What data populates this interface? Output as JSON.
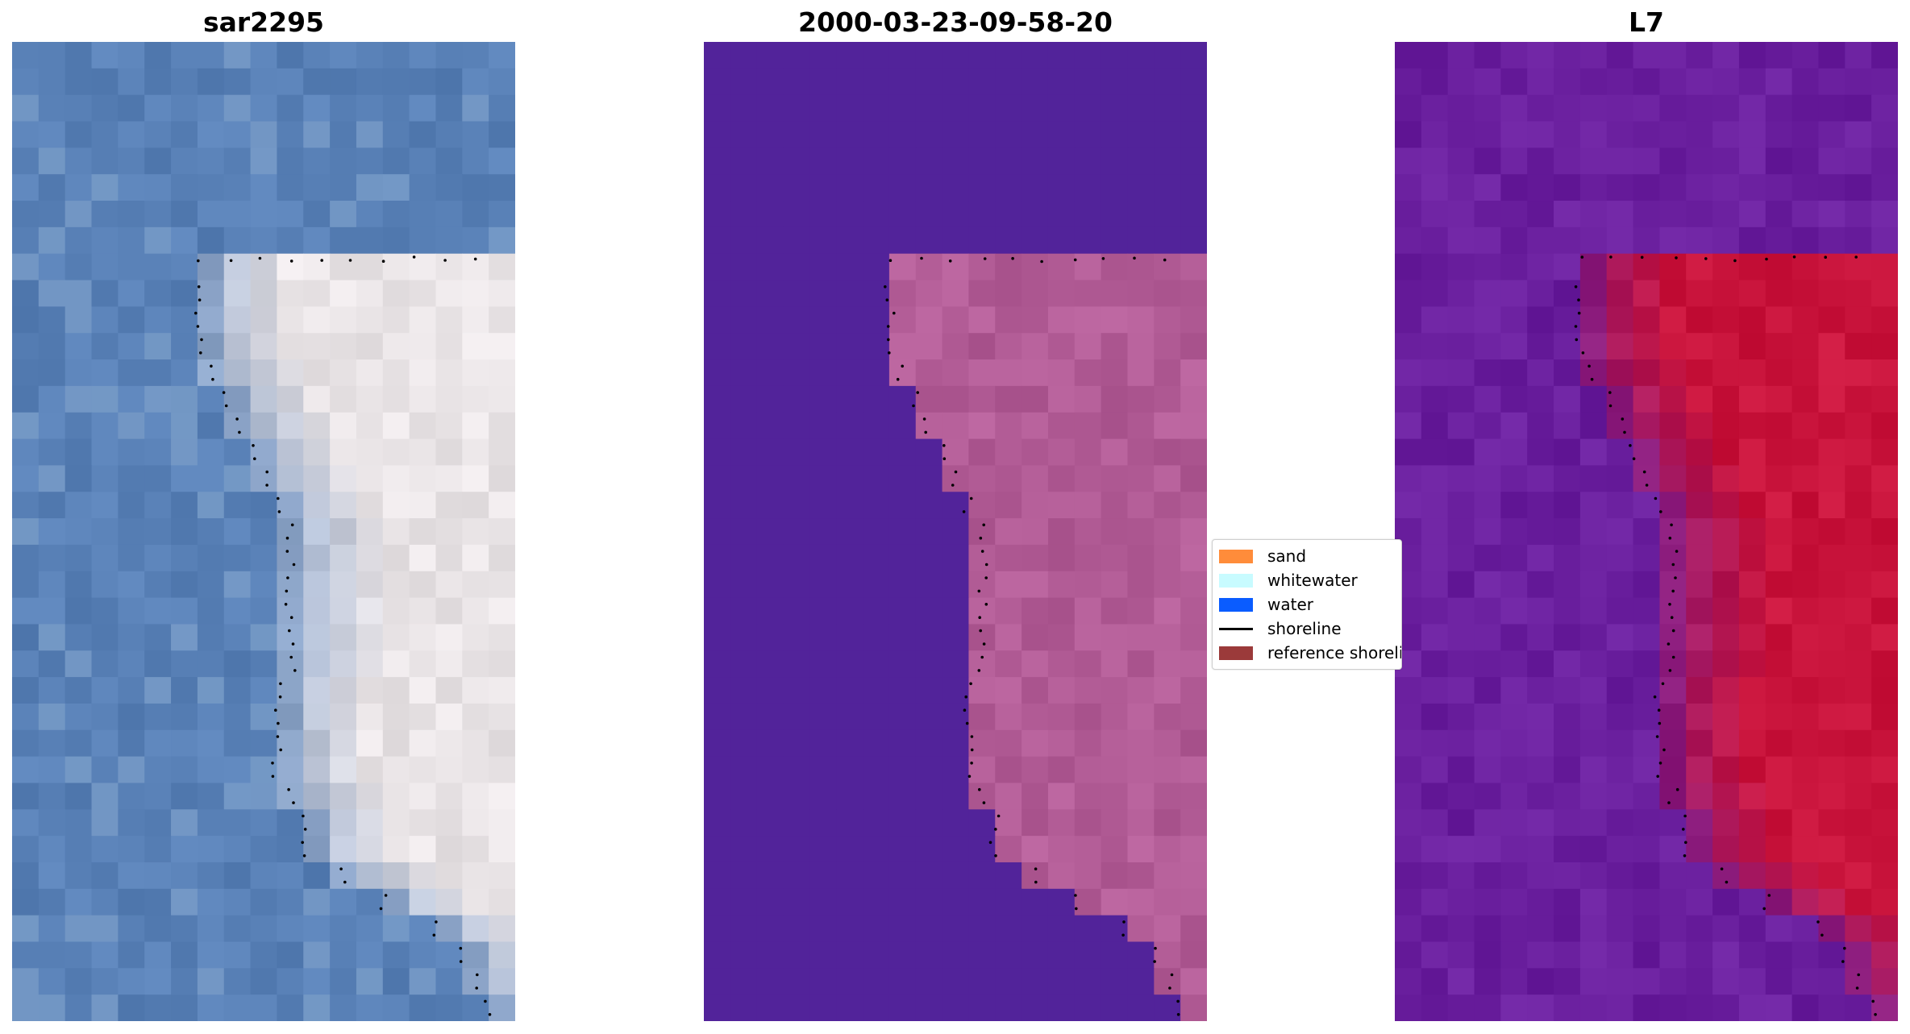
{
  "panels": [
    {
      "title": "sar2295",
      "image": "RGB satellite image of coastline"
    },
    {
      "title": "2000-03-23-09-58-20",
      "image": "classified image of coastline"
    },
    {
      "title": "L7",
      "image": "water index image of coastline"
    }
  ],
  "legend": {
    "items": [
      {
        "label": "sand",
        "color": "#ff8c3a",
        "kind": "swatch"
      },
      {
        "label": "whitewater",
        "color": "#c8fbff",
        "kind": "swatch"
      },
      {
        "label": "water",
        "color": "#0a5cff",
        "kind": "swatch"
      },
      {
        "label": "shoreline",
        "color": "#000000",
        "kind": "line"
      },
      {
        "label": "reference shoreline",
        "color": "#9b3a3a",
        "kind": "swatch"
      }
    ]
  },
  "colors": {
    "rgb_water": "#5a82b8",
    "rgb_land": "#e9e4e6",
    "class_water": "#52239a",
    "class_land": "#b25c96",
    "index_water": "#6a1f9e",
    "index_land": "#c9143c",
    "shoreline_dots": "#000000"
  }
}
